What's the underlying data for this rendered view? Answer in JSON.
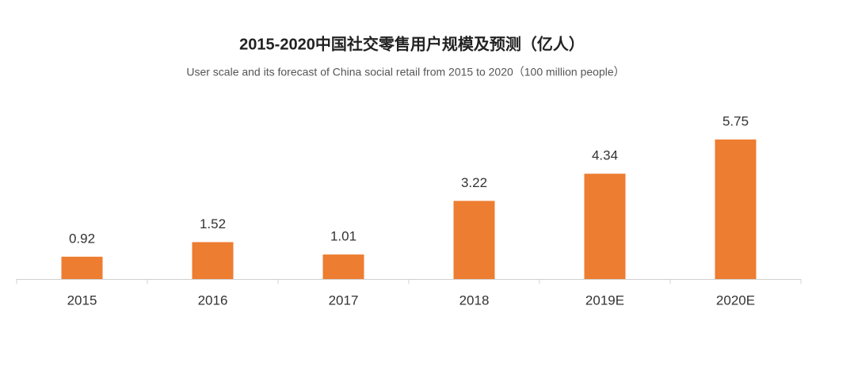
{
  "chart_data": {
    "type": "bar",
    "title": "2015-2020中国社交零售用户规模及预测（亿人）",
    "subtitle": "User scale and its forecast of China social retail from 2015 to 2020（100 million people）",
    "categories": [
      "2015",
      "2016",
      "2017",
      "2018",
      "2019E",
      "2020E"
    ],
    "values": [
      0.92,
      1.52,
      1.01,
      3.22,
      4.34,
      5.75
    ],
    "color": "#ed7d31"
  }
}
